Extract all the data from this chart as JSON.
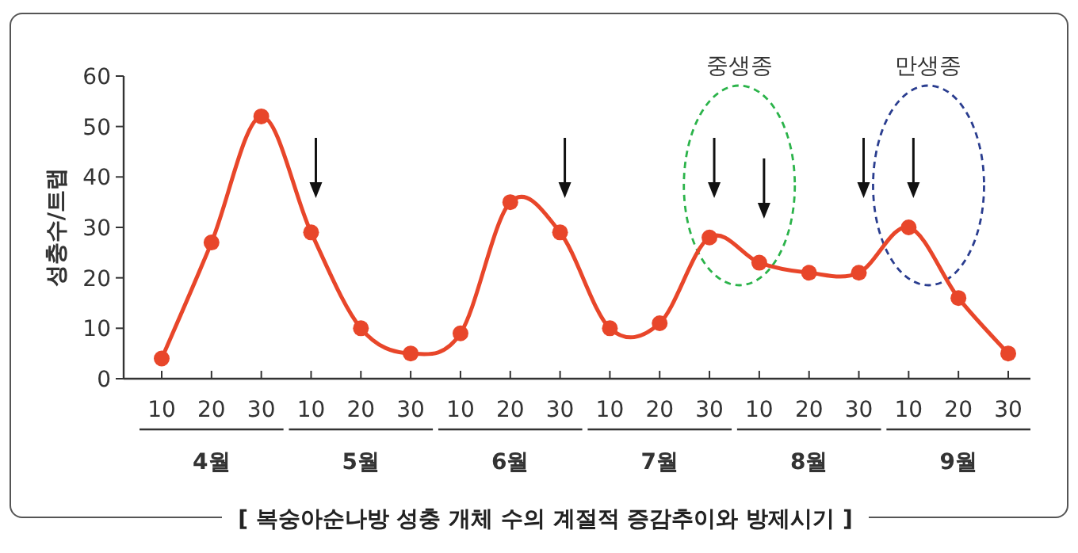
{
  "chart_data": {
    "type": "line",
    "ylabel": "성충수/트랩",
    "categories": [
      "10",
      "20",
      "30",
      "10",
      "20",
      "30",
      "10",
      "20",
      "30",
      "10",
      "20",
      "30",
      "10",
      "20",
      "30",
      "10",
      "20",
      "30"
    ],
    "series": [
      {
        "color": "#e8462a",
        "values": [
          4,
          27,
          52,
          29,
          10,
          5,
          9,
          35,
          29,
          10,
          11,
          28,
          23,
          21,
          21,
          30,
          16,
          5
        ]
      }
    ],
    "ylim": [
      0,
      60
    ],
    "yticks": [
      0,
      10,
      20,
      30,
      40,
      50,
      60
    ],
    "marker": "circle",
    "line_style": "solid",
    "annotations": [
      "4월",
      "5월",
      "6월",
      "7월",
      "8월",
      "9월",
      "중생종",
      "만생종",
      "[ 복숭아순나방 성충 개체 수의 계절적 증감추이와 방제시기 ]"
    ]
  }
}
